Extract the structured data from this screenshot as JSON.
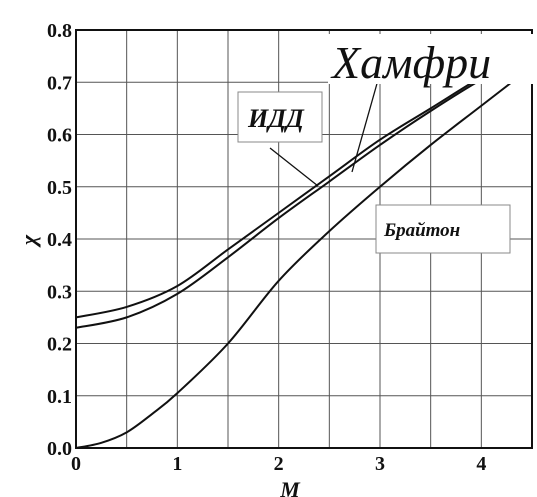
{
  "chart_data": {
    "type": "line",
    "title": "",
    "xlabel": "M",
    "ylabel": "χ",
    "xlim": [
      0,
      4.5
    ],
    "ylim": [
      0,
      0.8
    ],
    "x_ticks": [
      "0",
      "1",
      "2",
      "3",
      "4"
    ],
    "y_ticks": [
      "0.0",
      "0.1",
      "0.2",
      "0.3",
      "0.4",
      "0.5",
      "0.6",
      "0.7",
      "0.8"
    ],
    "grid": true,
    "series": [
      {
        "name": "Хамфри",
        "x": [
          0,
          0.5,
          1,
          1.5,
          2,
          2.5,
          3,
          3.5,
          4,
          4.5
        ],
        "y": [
          0.25,
          0.27,
          0.31,
          0.38,
          0.45,
          0.52,
          0.59,
          0.65,
          0.71,
          0.765
        ]
      },
      {
        "name": "ИДД",
        "x": [
          0,
          0.5,
          1,
          1.5,
          2,
          2.5,
          3,
          3.5,
          4,
          4.5
        ],
        "y": [
          0.23,
          0.25,
          0.295,
          0.365,
          0.44,
          0.51,
          0.58,
          0.645,
          0.705,
          0.755
        ]
      },
      {
        "name": "Брайтон",
        "x": [
          0,
          0.25,
          0.5,
          0.75,
          1,
          1.5,
          2,
          2.5,
          3,
          3.5,
          4,
          4.5
        ],
        "y": [
          0.0,
          0.01,
          0.03,
          0.065,
          0.105,
          0.2,
          0.32,
          0.415,
          0.5,
          0.58,
          0.655,
          0.73
        ]
      }
    ],
    "annotations": [
      {
        "text": "Хамфри",
        "series": 0
      },
      {
        "text": "ИДД",
        "series": 1
      },
      {
        "text": "Брайтон",
        "series": 2
      }
    ]
  }
}
